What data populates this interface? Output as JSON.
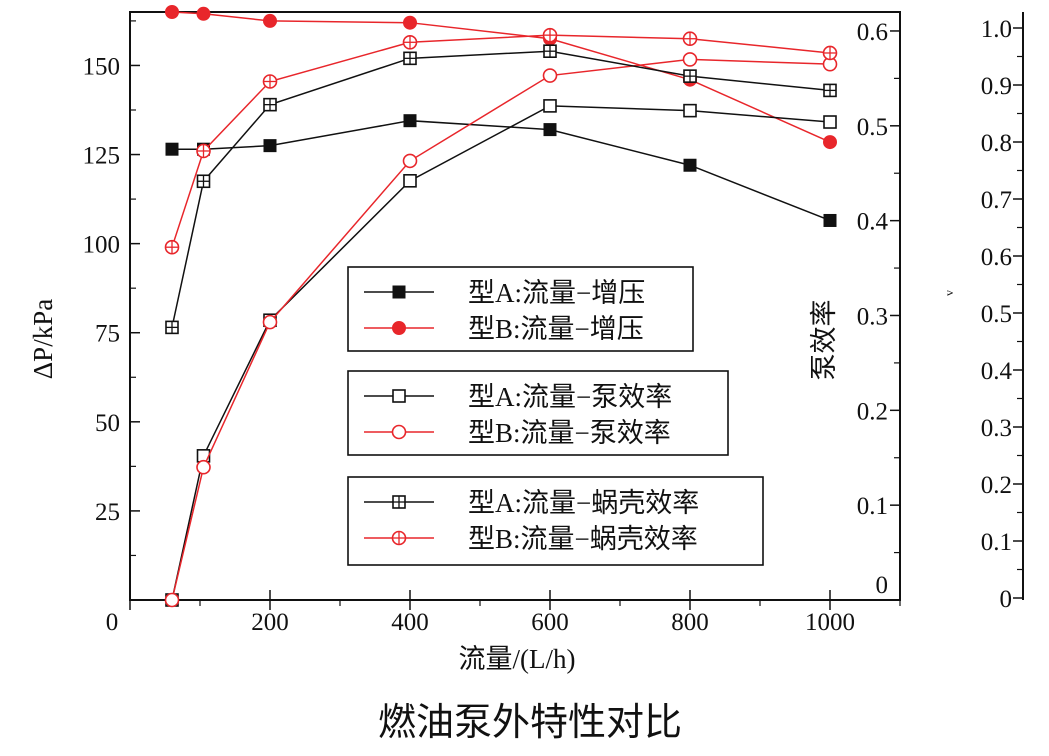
{
  "chart_data": {
    "type": "line",
    "title": "燃油泵外特性对比",
    "xlabel": "流量/(L/h)",
    "ylabel_left": "ΔP/kPa",
    "ylabel_mid": "泵效率",
    "ylabel_right": "v",
    "x_ticks": [
      "0",
      "200",
      "400",
      "600",
      "800",
      "1000"
    ],
    "y_left_ticks": [
      "25",
      "50",
      "75",
      "100",
      "125",
      "150"
    ],
    "y_mid_ticks": [
      "0",
      "0.1",
      "0.2",
      "0.3",
      "0.4",
      "0.5",
      "0.6"
    ],
    "y_right_ticks": [
      "0",
      "0.1",
      "0.2",
      "0.3",
      "0.4",
      "0.5",
      "0.6",
      "0.7",
      "0.8",
      "0.9",
      "1.0"
    ],
    "xlim": [
      0,
      1100
    ],
    "ylim_left": [
      0,
      165
    ],
    "ylim_mid": [
      0,
      0.62
    ],
    "ylim_right": [
      0,
      1.0
    ],
    "grid": false,
    "legend_position": "center",
    "series": [
      {
        "name": "型A:流量−增压",
        "axis": "left",
        "marker": "square-filled",
        "color": "#111111",
        "x": [
          60,
          105,
          200,
          400,
          600,
          800,
          1000
        ],
        "values": [
          126.5,
          126.5,
          127.5,
          134.5,
          132,
          122,
          106.5
        ]
      },
      {
        "name": "型B:流量−增压",
        "axis": "left",
        "marker": "circle-filled",
        "color": "#e8262b",
        "x": [
          60,
          105,
          200,
          400,
          600,
          800,
          1000
        ],
        "values": [
          165,
          164.5,
          162.5,
          162,
          157.5,
          146,
          128.5
        ]
      },
      {
        "name": "型A:流量−泵效率",
        "axis": "mid",
        "marker": "square-open",
        "color": "#111111",
        "x": [
          60,
          105,
          200,
          400,
          600,
          800,
          1000
        ],
        "values": [
          0.0,
          0.152,
          0.295,
          0.442,
          0.521,
          0.516,
          0.504
        ]
      },
      {
        "name": "型B:流量−泵效率",
        "axis": "mid",
        "marker": "circle-open",
        "color": "#e8262b",
        "x": [
          60,
          105,
          200,
          400,
          600,
          800,
          1000
        ],
        "values": [
          0.0,
          0.14,
          0.293,
          0.463,
          0.553,
          0.57,
          0.565
        ]
      },
      {
        "name": "型A:流量−蜗壳效率",
        "axis": "left",
        "marker": "square-plus",
        "color": "#111111",
        "x": [
          60,
          105,
          200,
          400,
          600,
          800,
          1000
        ],
        "values": [
          76.5,
          117.5,
          139,
          152,
          154,
          147,
          143
        ]
      },
      {
        "name": "型B:流量−蜗壳效率",
        "axis": "left",
        "marker": "circle-plus",
        "color": "#e8262b",
        "x": [
          60,
          105,
          200,
          400,
          600,
          800,
          1000
        ],
        "values": [
          99,
          126,
          145.5,
          156.5,
          158.5,
          157.5,
          153.5
        ]
      }
    ],
    "legend_groups": [
      [
        0,
        1
      ],
      [
        2,
        3
      ],
      [
        4,
        5
      ]
    ]
  }
}
